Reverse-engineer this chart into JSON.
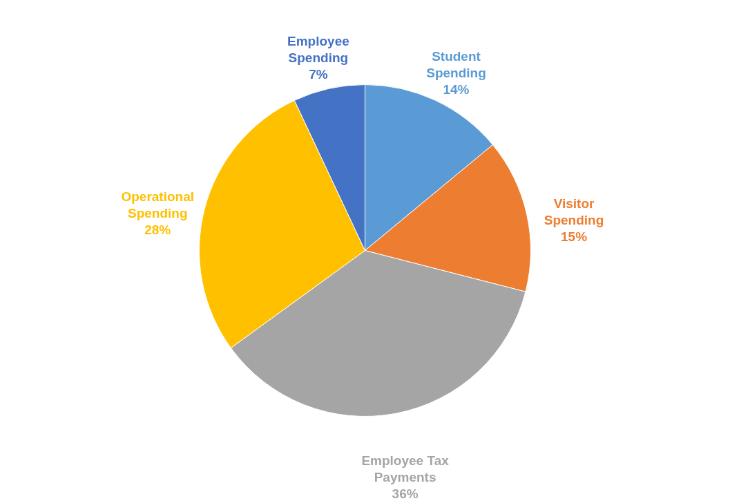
{
  "chart_data": {
    "type": "pie",
    "categories": [
      "Student Spending",
      "Visitor Spending",
      "Employee Tax Payments",
      "Operational Spending",
      "Employee Spending"
    ],
    "values": [
      14,
      15,
      36,
      28,
      7
    ],
    "value_labels": [
      "14%",
      "15%",
      "36%",
      "28%",
      "7%"
    ],
    "colors": [
      "#5b9bd5",
      "#ed7d31",
      "#a5a5a5",
      "#ffc000",
      "#4472c4"
    ]
  }
}
